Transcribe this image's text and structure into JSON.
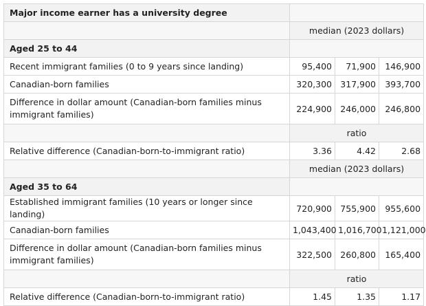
{
  "table": {
    "title": "Major income earner has a university degree",
    "sections": [
      {
        "unit": "median (2023 dollars)",
        "label": "Aged 25 to 44",
        "rows": [
          [
            "Recent immigrant families (0 to 9 years since landing)",
            "95,400",
            "71,900",
            "146,900"
          ],
          [
            "Canadian-born families",
            "320,300",
            "317,900",
            "393,700"
          ],
          [
            "Difference in dollar amount (Canadian-born families minus immigrant families)",
            "224,900",
            "246,000",
            "246,800"
          ]
        ],
        "ratio_unit": "ratio",
        "ratio_row": [
          "Relative difference (Canadian-born-to-immigrant ratio)",
          "3.36",
          "4.42",
          "2.68"
        ]
      },
      {
        "unit": "median (2023 dollars)",
        "label": "Aged 35 to 64",
        "rows": [
          [
            "Established immigrant families (10 years or longer since landing)",
            "720,900",
            "755,900",
            "955,600"
          ],
          [
            "Canadian-born families",
            "1,043,400",
            "1,016,700",
            "1,121,000"
          ],
          [
            "Difference in dollar amount (Canadian-born families minus immigrant families)",
            "322,500",
            "260,800",
            "165,400"
          ]
        ],
        "ratio_unit": "ratio",
        "ratio_row": [
          "Relative difference (Canadian-born-to-immigrant ratio)",
          "1.45",
          "1.35",
          "1.17"
        ]
      }
    ]
  }
}
